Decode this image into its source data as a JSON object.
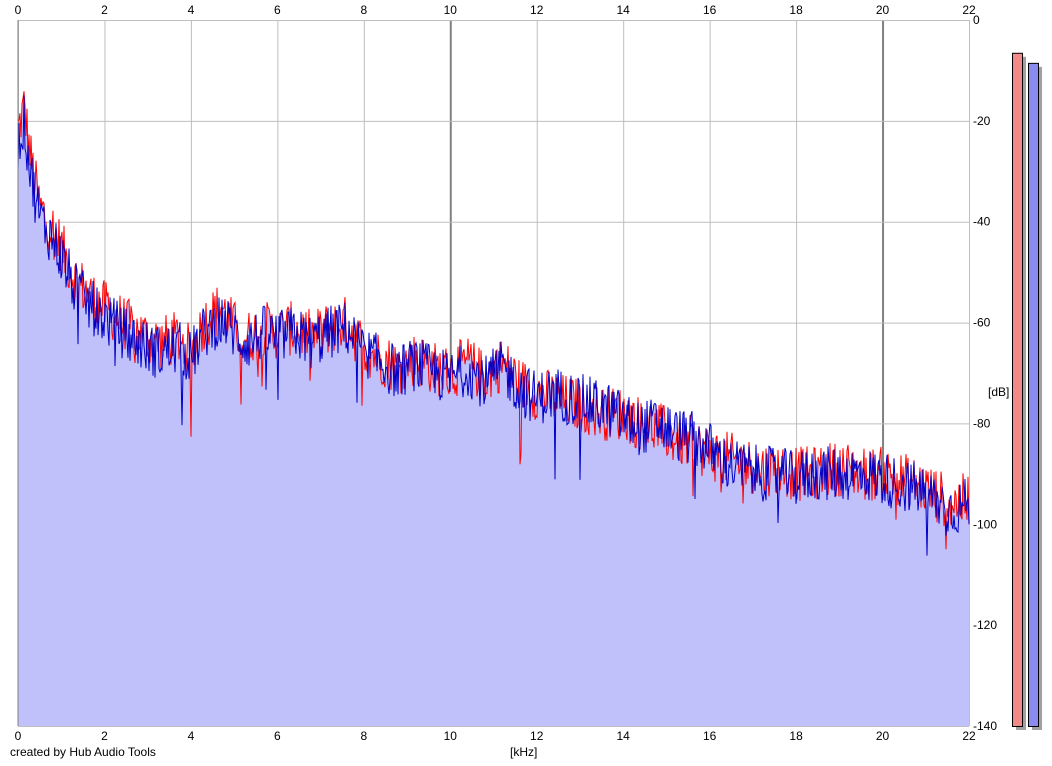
{
  "credit": "created by Hub Audio Tools",
  "chart_data": {
    "type": "area",
    "xlabel": "[kHz]",
    "ylabel": "[dB]",
    "xlim": [
      0,
      22
    ],
    "ylim": [
      -140,
      0
    ],
    "x_ticks": [
      0,
      2,
      4,
      6,
      8,
      10,
      12,
      14,
      16,
      18,
      20,
      22
    ],
    "y_ticks": [
      0,
      -20,
      -40,
      -60,
      -80,
      -100,
      -120,
      -140
    ],
    "grid": true,
    "colors": {
      "fill": "#c0c0fa",
      "left_channel": "#ff0000",
      "right_channel": "#0000c8",
      "grid_minor": "#bebebe",
      "grid_major": "#808080",
      "left_meter": "#f28a8a",
      "right_meter": "#8a8af0"
    },
    "series": [
      {
        "color": "#ff0000",
        "x": [
          0.0,
          0.15,
          0.25,
          0.35,
          0.5,
          0.7,
          0.9,
          1.1,
          1.3,
          1.5,
          1.7,
          2.0,
          2.3,
          2.6,
          3.0,
          3.3,
          3.7,
          4.0,
          4.3,
          4.7,
          5.0,
          5.3,
          5.7,
          6.0,
          6.4,
          6.8,
          7.2,
          7.6,
          8.0,
          8.4,
          8.8,
          9.2,
          9.6,
          10.0,
          10.4,
          10.8,
          11.2,
          11.6,
          12.0,
          12.4,
          12.8,
          13.2,
          13.6,
          14.0,
          14.4,
          14.8,
          15.2,
          15.6,
          16.0,
          16.4,
          16.8,
          17.2,
          17.6,
          18.0,
          18.4,
          18.8,
          19.2,
          19.6,
          20.0,
          20.4,
          20.8,
          21.2,
          21.6,
          22.0
        ],
        "y": [
          -22,
          -17,
          -25,
          -30,
          -37,
          -40,
          -43,
          -47,
          -51,
          -53,
          -55,
          -57,
          -59,
          -61,
          -63,
          -64,
          -63,
          -66,
          -60,
          -57,
          -61,
          -63,
          -61,
          -62,
          -61,
          -63,
          -61,
          -60,
          -65,
          -67,
          -69,
          -67,
          -69,
          -70,
          -68,
          -71,
          -68,
          -72,
          -74,
          -75,
          -76,
          -77,
          -78,
          -78,
          -80,
          -81,
          -83,
          -84,
          -86,
          -87,
          -88,
          -89,
          -89,
          -90,
          -90,
          -89,
          -89,
          -90,
          -90,
          -91,
          -92,
          -94,
          -96,
          -95
        ]
      },
      {
        "color": "#0000c8",
        "x": [
          0.0,
          0.15,
          0.25,
          0.35,
          0.5,
          0.7,
          0.9,
          1.1,
          1.3,
          1.5,
          1.7,
          2.0,
          2.3,
          2.6,
          3.0,
          3.3,
          3.7,
          4.0,
          4.3,
          4.7,
          5.0,
          5.3,
          5.7,
          6.0,
          6.4,
          6.8,
          7.2,
          7.6,
          8.0,
          8.4,
          8.8,
          9.2,
          9.6,
          10.0,
          10.4,
          10.8,
          11.2,
          11.6,
          12.0,
          12.4,
          12.8,
          13.2,
          13.6,
          14.0,
          14.4,
          14.8,
          15.2,
          15.6,
          16.0,
          16.4,
          16.8,
          17.2,
          17.6,
          18.0,
          18.4,
          18.8,
          19.2,
          19.6,
          20.0,
          20.4,
          20.8,
          21.2,
          21.6,
          22.0
        ],
        "y": [
          -25,
          -20,
          -28,
          -33,
          -39,
          -42,
          -45,
          -49,
          -53,
          -55,
          -57,
          -59,
          -61,
          -63,
          -65,
          -66,
          -65,
          -67,
          -62,
          -59,
          -62,
          -64,
          -62,
          -63,
          -62,
          -64,
          -62,
          -61,
          -66,
          -68,
          -70,
          -68,
          -70,
          -71,
          -69,
          -72,
          -69,
          -73,
          -75,
          -74,
          -75,
          -76,
          -77,
          -79,
          -81,
          -80,
          -82,
          -83,
          -85,
          -88,
          -89,
          -90,
          -90,
          -91,
          -90,
          -90,
          -90,
          -90,
          -91,
          -92,
          -93,
          -95,
          -97,
          -96
        ]
      }
    ],
    "level_meters": [
      {
        "color": "#f28a8a",
        "peak_db": -6.5
      },
      {
        "color": "#8a8af0",
        "peak_db": -8.5
      }
    ]
  }
}
